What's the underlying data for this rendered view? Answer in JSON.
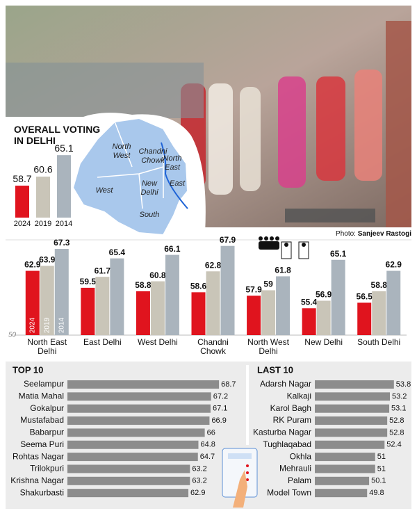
{
  "photo_credit": {
    "prefix": "Photo:",
    "name": "Sanjeev Rastogi"
  },
  "map": {
    "labels": [
      "North West",
      "Chandni Chowk",
      "North East",
      "West",
      "New Delhi",
      "East",
      "South"
    ]
  },
  "chart_data": [
    {
      "type": "bar",
      "title": "OVERALL VOTING IN DELHI",
      "categories": [
        "2024",
        "2019",
        "2014"
      ],
      "values": [
        58.7,
        60.6,
        65.1
      ],
      "colors": [
        "#e0141e",
        "#c9c5b8",
        "#aab4bd"
      ],
      "ylim": [
        52,
        66
      ]
    },
    {
      "type": "bar",
      "categories": [
        "North East Delhi",
        "East Delhi",
        "West Delhi",
        "Chandni Chowk",
        "North West Delhi",
        "New Delhi",
        "South Delhi"
      ],
      "series": [
        {
          "name": "2024",
          "color": "#e0141e",
          "values": [
            62.9,
            59.5,
            58.8,
            58.6,
            57.9,
            55.4,
            56.5
          ]
        },
        {
          "name": "2019",
          "color": "#c9c5b8",
          "values": [
            63.9,
            61.7,
            60.8,
            62.8,
            59,
            56.9,
            58.8
          ]
        },
        {
          "name": "2014",
          "color": "#aab4bd",
          "values": [
            67.3,
            65.4,
            66.1,
            67.9,
            61.8,
            65.1,
            62.9
          ]
        }
      ],
      "ylim": [
        50,
        68
      ],
      "yticks": [
        50
      ]
    },
    {
      "type": "barh",
      "title": "TOP 10",
      "categories": [
        "Seelampur",
        "Matia Mahal",
        "Gokalpur",
        "Mustafabad",
        "Babarpur",
        "Seema Puri",
        "Rohtas Nagar",
        "Trilokpuri",
        "Krishna Nagar",
        "Shakurbasti"
      ],
      "values": [
        68.7,
        67.2,
        67.1,
        66.9,
        66,
        64.8,
        64.7,
        63.2,
        63.2,
        62.9
      ],
      "color": "#8c8c8c",
      "xlim": [
        40,
        70
      ]
    },
    {
      "type": "barh",
      "title": "LAST 10",
      "categories": [
        "Adarsh Nagar",
        "Kalkaji",
        "Karol Bagh",
        "RK Puram",
        "Kasturba Nagar",
        "Tughlaqabad",
        "Okhla",
        "Mehrauli",
        "Palam",
        "Model Town"
      ],
      "values": [
        53.8,
        53.2,
        53.1,
        52.8,
        52.8,
        52.4,
        51,
        51,
        50.1,
        49.8
      ],
      "color": "#8c8c8c",
      "xlim": [
        42,
        56
      ]
    }
  ]
}
